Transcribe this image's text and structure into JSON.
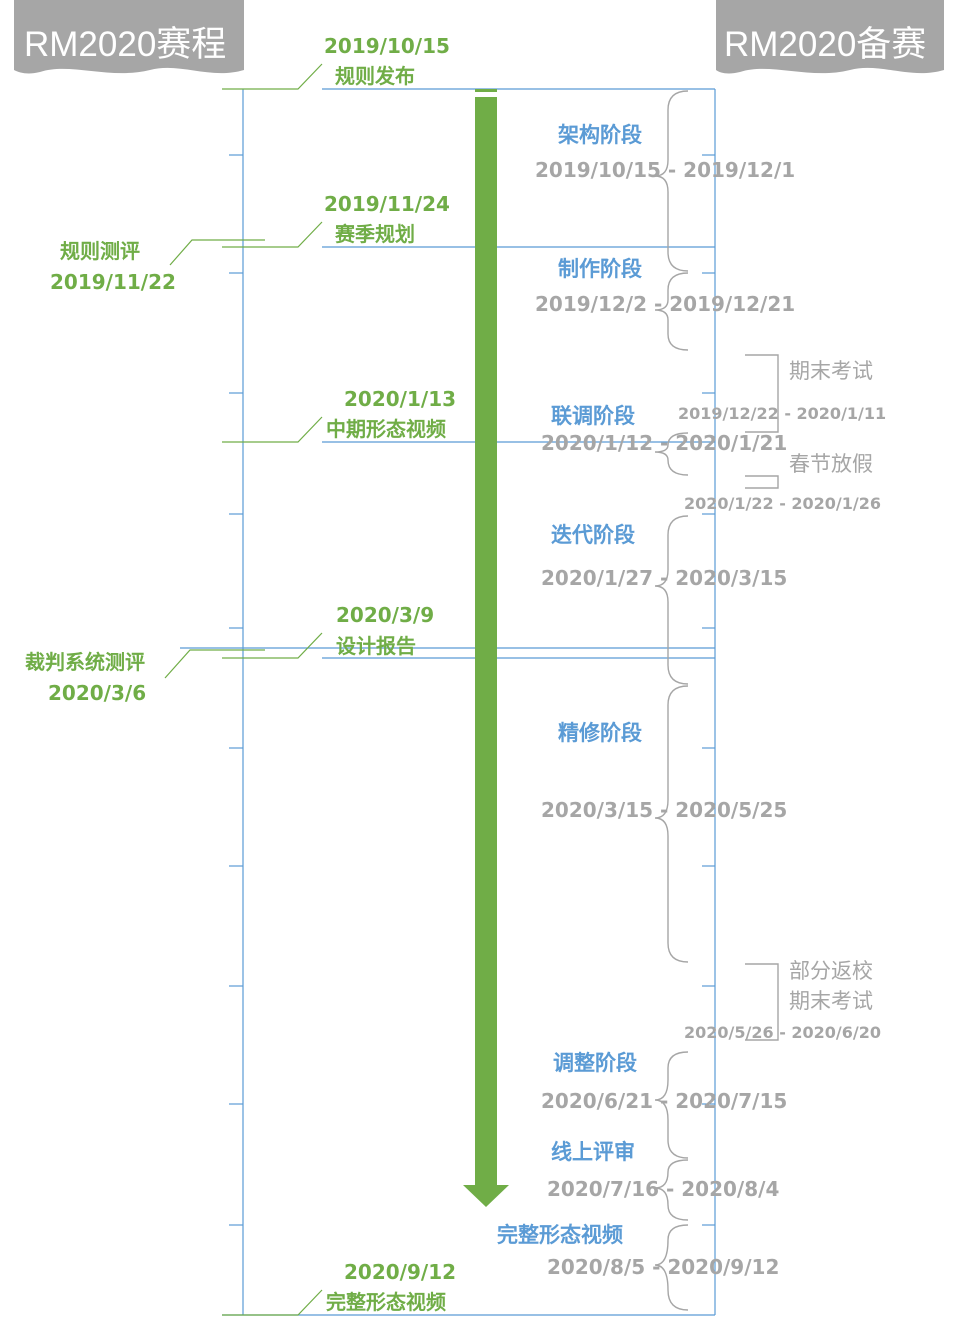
{
  "headers": {
    "left": "RM2020赛程",
    "right": "RM2020备赛"
  },
  "schedule": [
    {
      "date": "2019/10/15",
      "label": "规则发布"
    },
    {
      "date": "2019/11/24",
      "label": "赛季规划"
    },
    {
      "date": "2020/1/13",
      "label": "中期形态视频"
    },
    {
      "date": "2020/3/9",
      "label": "设计报告"
    },
    {
      "date": "2020/9/12",
      "label": "完整形态视频"
    }
  ],
  "side_events": [
    {
      "label": "规则测评",
      "date": "2019/11/22"
    },
    {
      "label": "裁判系统测评",
      "date": "2020/3/6"
    }
  ],
  "phases": [
    {
      "name": "架构阶段",
      "range": "2019/10/15 - 2019/12/1"
    },
    {
      "name": "制作阶段",
      "range": "2019/12/2 - 2019/12/21"
    },
    {
      "name": "联调阶段",
      "range": "2020/1/12 - 2020/1/21"
    },
    {
      "name": "迭代阶段",
      "range": "2020/1/27 - 2020/3/15"
    },
    {
      "name": "精修阶段",
      "range": "2020/3/15 - 2020/5/25"
    },
    {
      "name": "调整阶段",
      "range": "2020/6/21 - 2020/7/15"
    },
    {
      "name": "线上评审",
      "range": "2020/7/16 - 2020/8/4"
    },
    {
      "name": "完整形态视频",
      "range": "2020/8/5 - 2020/9/12"
    }
  ],
  "breaks": [
    {
      "name": "期末考试",
      "range": "2019/12/22 - 2020/1/11"
    },
    {
      "name": "春节放假",
      "range": "2020/1/22 - 2020/1/26"
    },
    {
      "name_line1": "部分返校",
      "name_line2": "期末考试",
      "range": "2020/5/26 - 2020/6/20"
    }
  ],
  "colors": {
    "green": "#70ad47",
    "blue": "#5b9bd5",
    "gray": "#a6a6a6",
    "header_bg": "#a6a6a6"
  }
}
